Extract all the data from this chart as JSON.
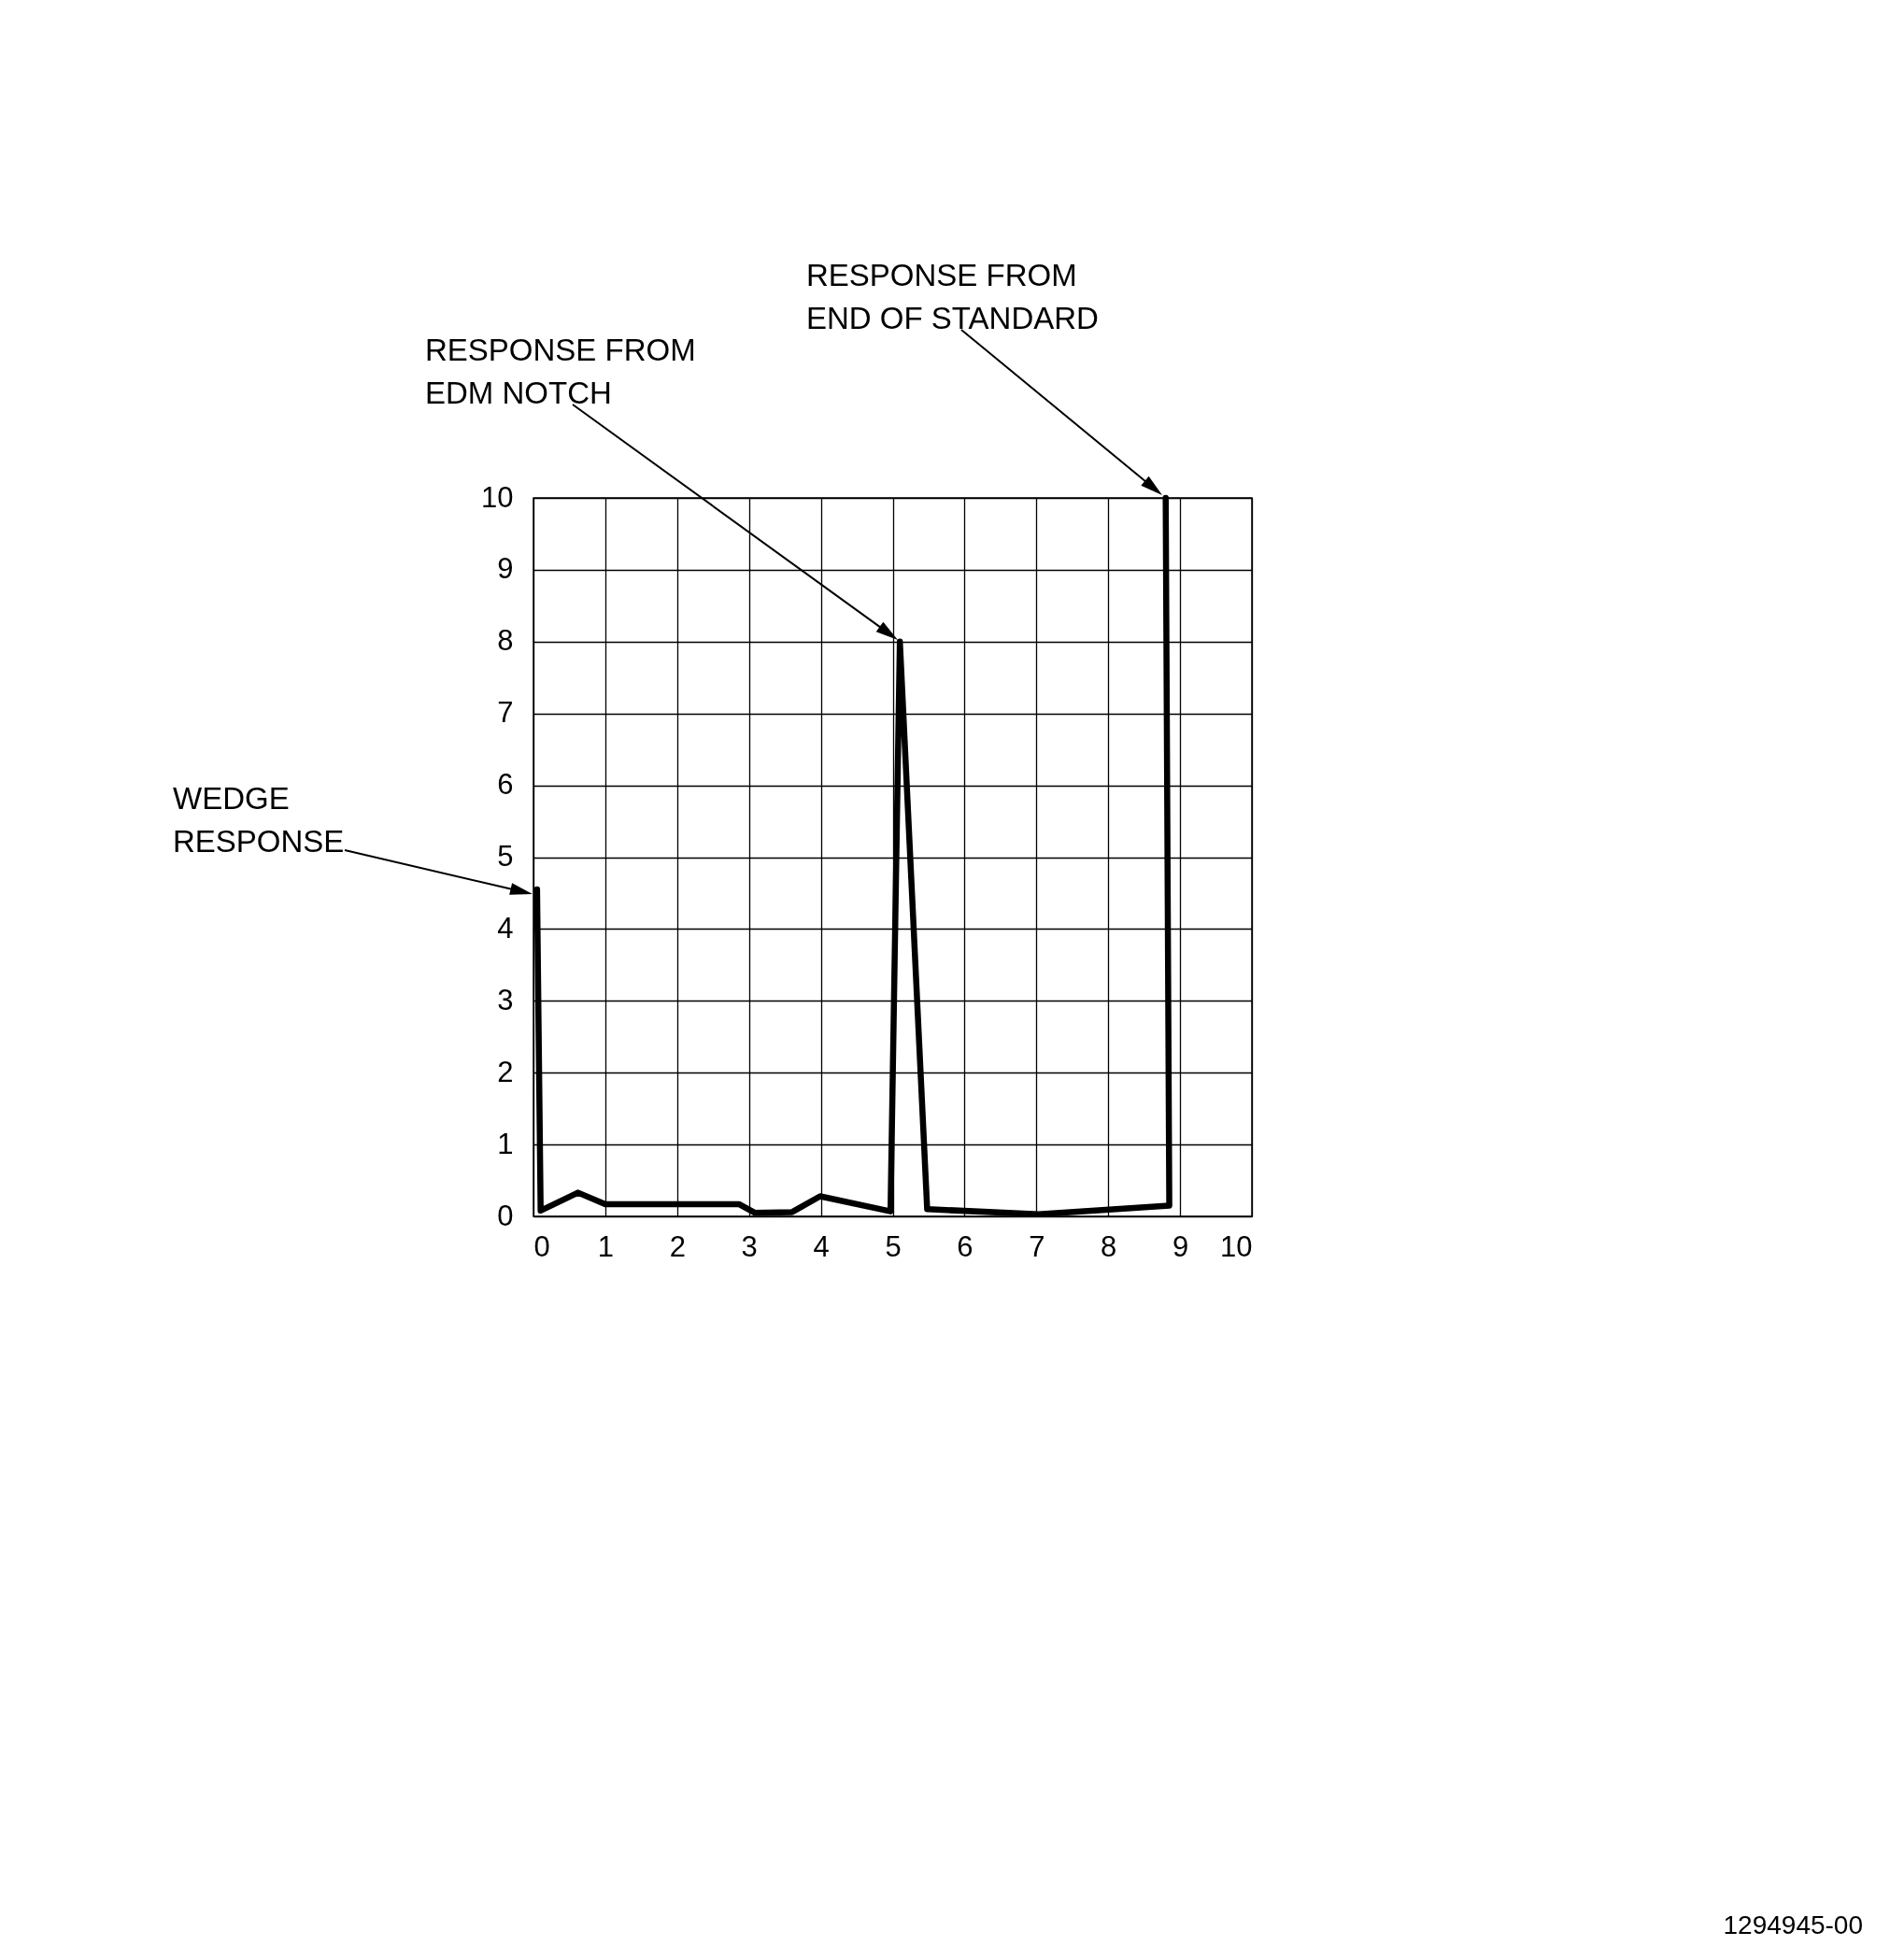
{
  "chart_data": {
    "type": "line",
    "x": [
      0.05,
      0.1,
      0.62,
      1.0,
      2.86,
      3.08,
      3.6,
      3.99,
      4.97,
      5.1,
      5.48,
      7.03,
      8.85,
      8.8
    ],
    "series": [
      {
        "color": "#000000",
        "values": [
          4.55,
          0.08,
          0.33,
          0.17,
          0.17,
          0.05,
          0.06,
          0.28,
          0.07,
          8.0,
          0.1,
          0.03,
          0.15,
          10.0
        ]
      }
    ],
    "xlim": [
      0,
      10
    ],
    "ylim": [
      0,
      10
    ],
    "xticks": [
      0,
      1,
      2,
      3,
      4,
      5,
      6,
      7,
      8,
      9,
      10
    ],
    "yticks": [
      0,
      1,
      2,
      3,
      4,
      5,
      6,
      7,
      8,
      9,
      10
    ],
    "grid": true,
    "marker": "none",
    "line_style": "solid",
    "annotations": [
      "WEDGE\nRESPONSE",
      "RESPONSE FROM\nEDM NOTCH",
      "RESPONSE FROM\nEND OF STANDARD",
      "1294945-00"
    ]
  }
}
